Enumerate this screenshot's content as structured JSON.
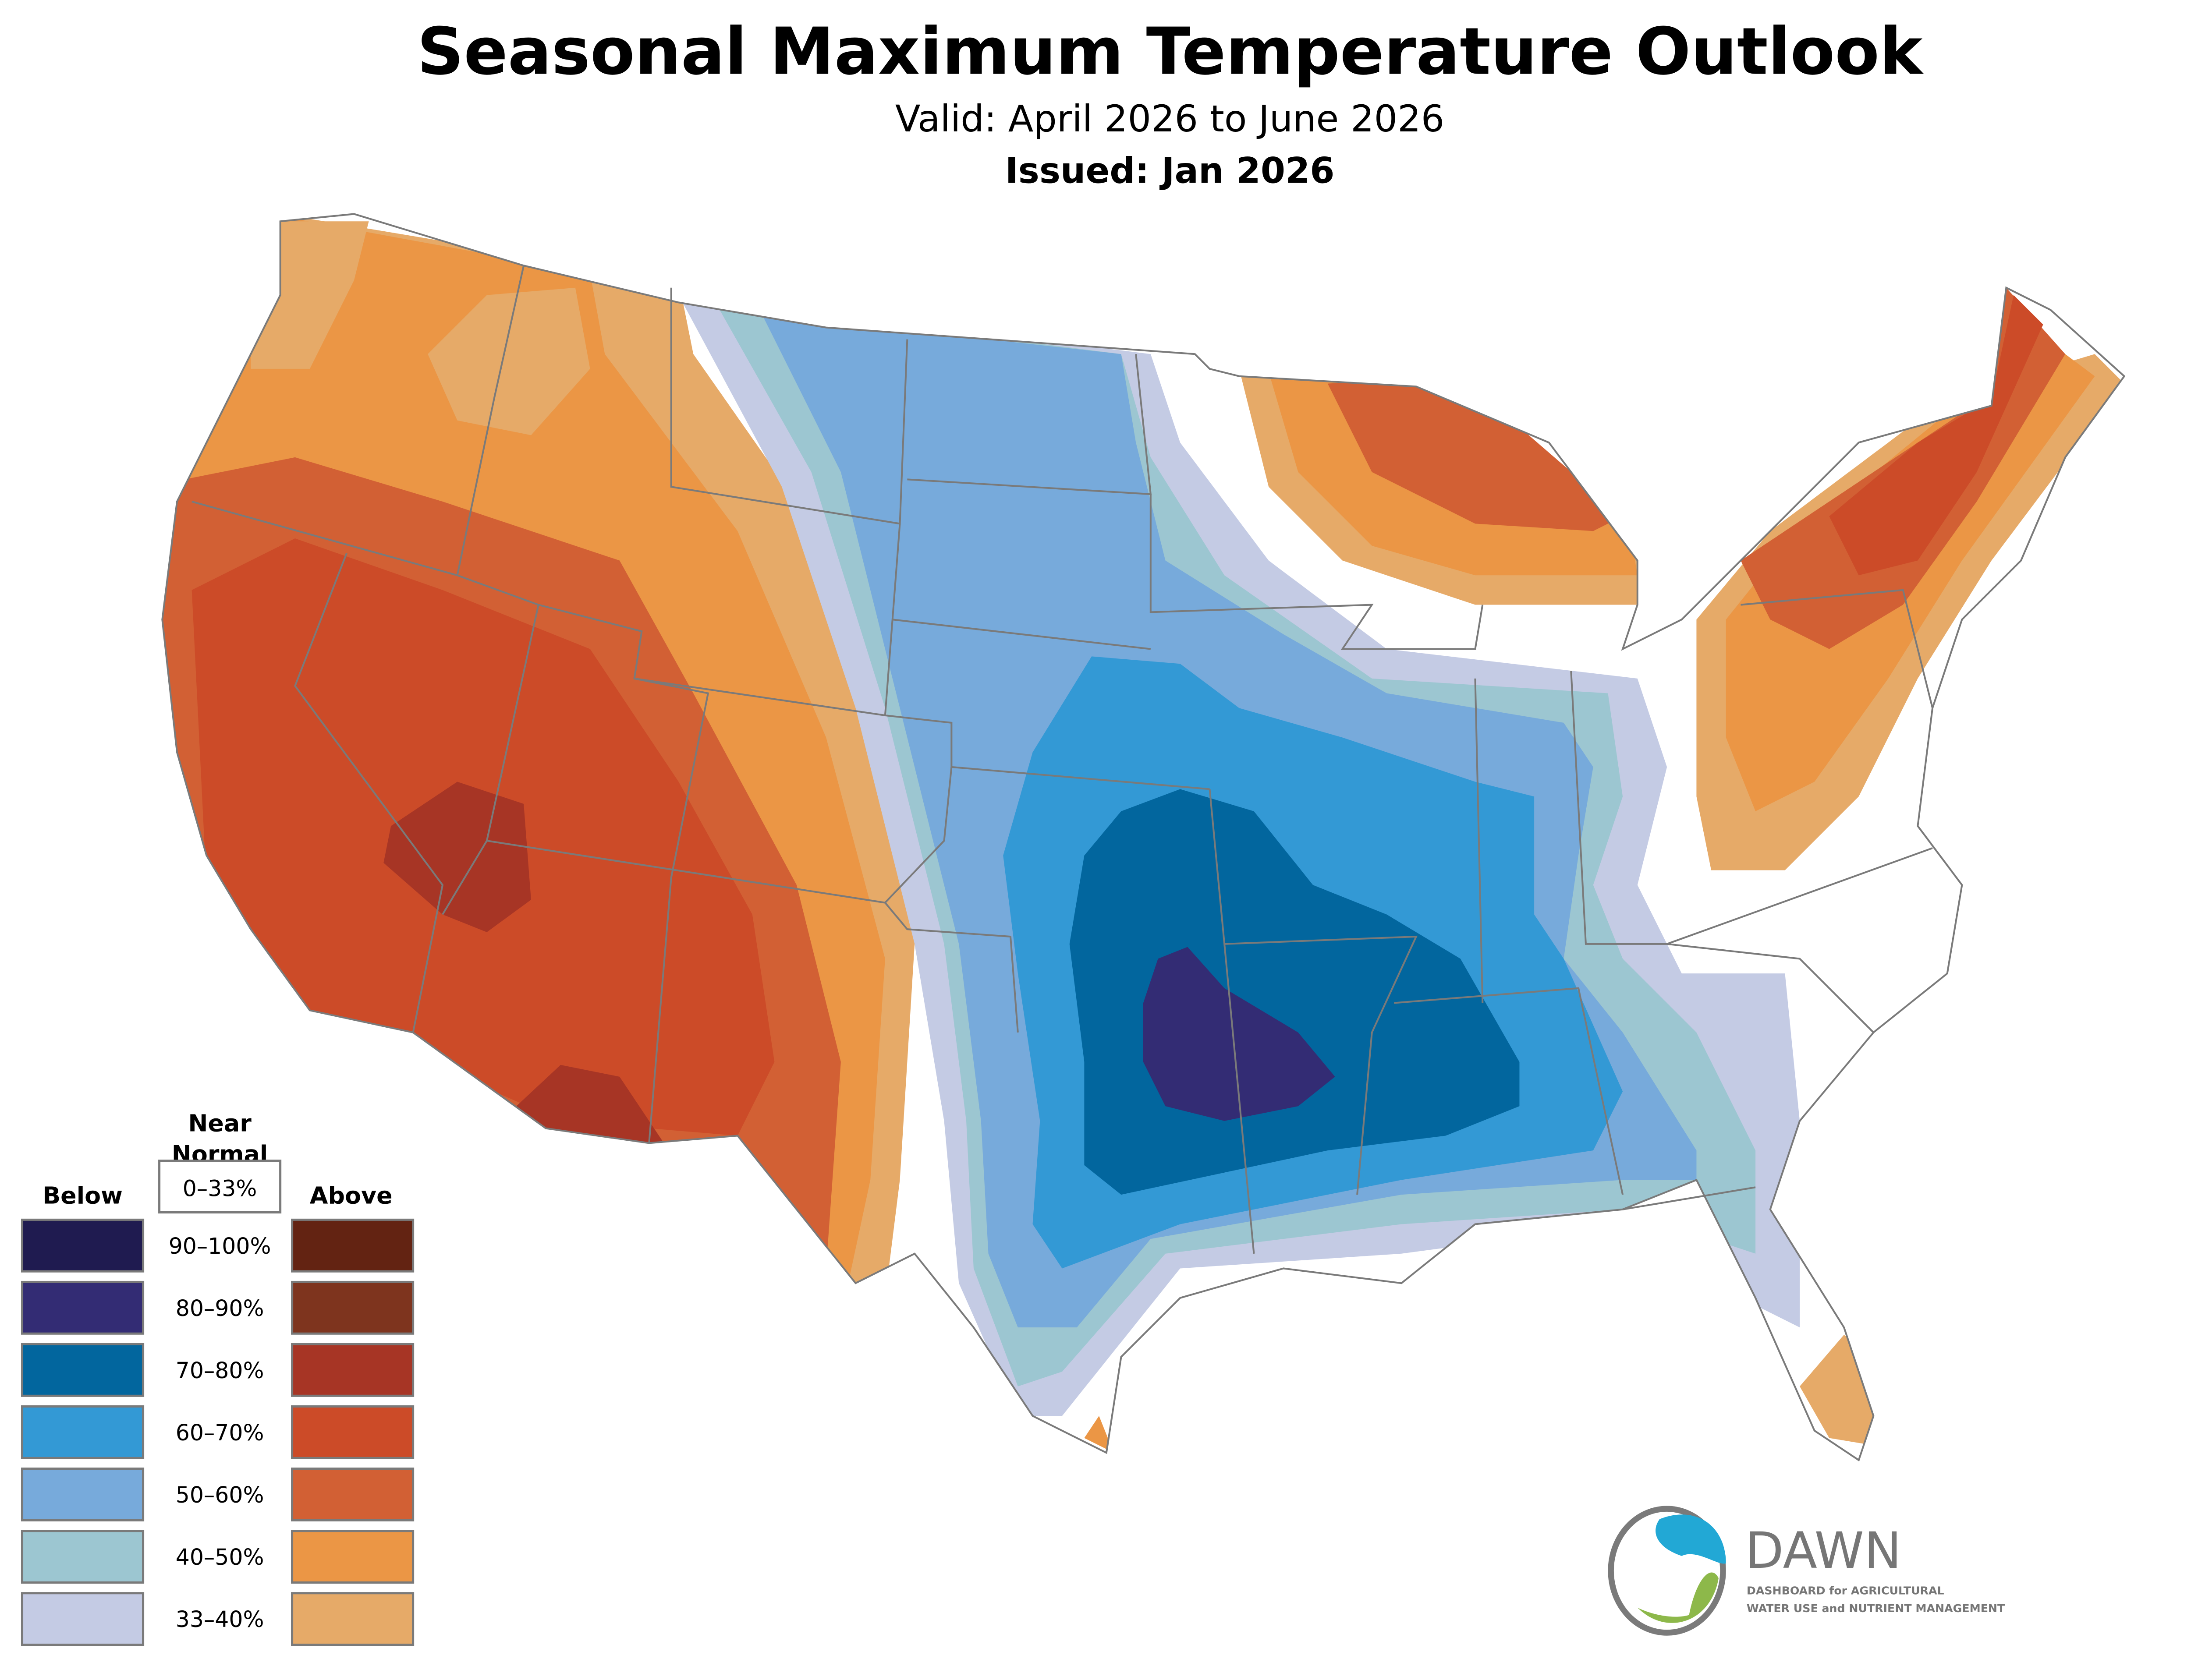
{
  "header": {
    "title": "Seasonal Maximum Temperature Outlook",
    "valid": "Valid: April 2026 to June 2026",
    "issued": "Issued: Jan 2026"
  },
  "legend": {
    "near_normal_line1": "Near",
    "near_normal_line2": "Normal",
    "near_normal_range": "0–33%",
    "below_label": "Below",
    "above_label": "Above",
    "rows": [
      {
        "range": "90–100%",
        "below_color": "#1f1b50",
        "above_color": "#632312"
      },
      {
        "range": "80–90%",
        "below_color": "#332c74",
        "above_color": "#7e341e"
      },
      {
        "range": "70–80%",
        "below_color": "#02669e",
        "above_color": "#a73525"
      },
      {
        "range": "60–70%",
        "below_color": "#3399d5",
        "above_color": "#cc4b28"
      },
      {
        "range": "50–60%",
        "below_color": "#77aadb",
        "above_color": "#d26034"
      },
      {
        "range": "40–50%",
        "below_color": "#9cc6d1",
        "above_color": "#eb9645"
      },
      {
        "range": "33–40%",
        "below_color": "#c4cbe4",
        "above_color": "#e6aa68"
      }
    ]
  },
  "logo": {
    "name": "DAWN",
    "line1": "DASHBOARD for AGRICULTURAL",
    "line2": "WATER USE and NUTRIENT MANAGEMENT"
  }
}
